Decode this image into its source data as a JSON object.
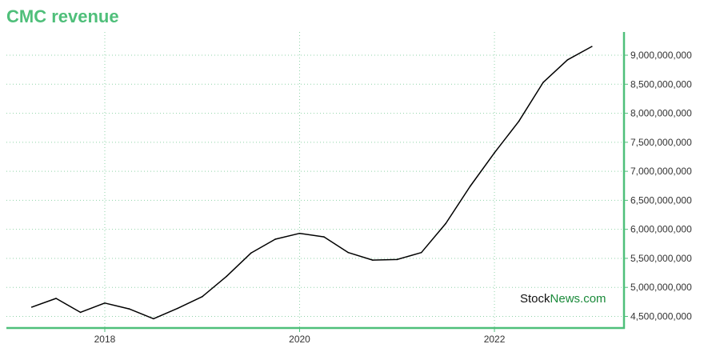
{
  "title": "CMC revenue",
  "colors": {
    "title": "#4fbf7a",
    "axis": "#4fbf7a",
    "grid": "#8fd3a8",
    "line": "#000000"
  },
  "watermark": {
    "part1": "Stock",
    "part2": "News",
    "part3": ".com"
  },
  "chart_data": {
    "type": "line",
    "title": "CMC revenue",
    "xlabel": "",
    "ylabel": "",
    "x_ticks": [
      2018,
      2020,
      2022
    ],
    "y_ticks": [
      4500000000,
      5000000000,
      5500000000,
      6000000000,
      6500000000,
      7000000000,
      7500000000,
      8000000000,
      8500000000,
      9000000000
    ],
    "y_tick_labels": [
      "4,500,000,000",
      "5,000,000,000",
      "5,500,000,000",
      "6,000,000,000",
      "6,500,000,000",
      "7,000,000,000",
      "7,500,000,000",
      "8,000,000,000",
      "8,500,000,000",
      "9,000,000,000"
    ],
    "xlim": [
      2016.99,
      2023.33
    ],
    "ylim": [
      4300000000,
      9400000000
    ],
    "grid": true,
    "y_axis_side": "right",
    "series": [
      {
        "x": [
          2017.25,
          2017.5,
          2017.75,
          2018.0,
          2018.25,
          2018.5,
          2018.75,
          2019.0,
          2019.25,
          2019.5,
          2019.75,
          2020.0,
          2020.25,
          2020.5,
          2020.75,
          2021.0,
          2021.25,
          2021.5,
          2021.75,
          2022.0,
          2022.25,
          2022.5,
          2022.75,
          2023.0
        ],
        "values": [
          4660000000,
          4810000000,
          4570000000,
          4730000000,
          4630000000,
          4460000000,
          4640000000,
          4840000000,
          5190000000,
          5590000000,
          5830000000,
          5930000000,
          5870000000,
          5600000000,
          5470000000,
          5480000000,
          5600000000,
          6100000000,
          6740000000,
          7320000000,
          7860000000,
          8530000000,
          8920000000,
          9150000000
        ]
      }
    ]
  }
}
